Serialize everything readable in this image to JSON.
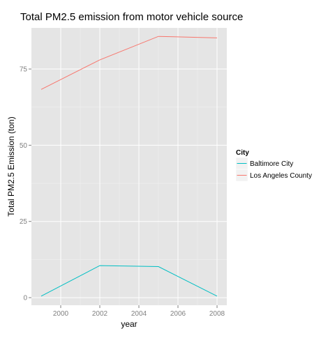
{
  "chart_data": {
    "type": "line",
    "title": "Total PM2.5 emission from  motor vehicle source",
    "xlabel": "year",
    "ylabel": "Total PM2.5 Emission (ton)",
    "x": [
      1999,
      2002,
      2005,
      2008
    ],
    "xlim": [
      1998.5,
      2008.5
    ],
    "ylim": [
      -2.5,
      88.5
    ],
    "x_ticks": [
      2000,
      2002,
      2004,
      2006,
      2008
    ],
    "y_ticks": [
      0,
      25,
      50,
      75
    ],
    "grid": true,
    "legend": {
      "title": "City",
      "position": "right"
    },
    "series": [
      {
        "name": "Baltimore City",
        "color": "#00bfc4",
        "values": [
          0.5,
          10.5,
          10.2,
          0.5
        ]
      },
      {
        "name": "Los Angeles County",
        "color": "#f8766d",
        "values": [
          68.3,
          78.0,
          85.7,
          85.2
        ]
      }
    ]
  }
}
